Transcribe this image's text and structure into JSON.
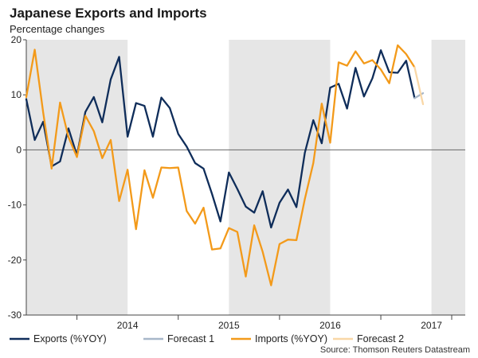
{
  "chart_data": {
    "type": "line",
    "title": "Japanese Exports and Imports",
    "subtitle": "Percentage changes",
    "source": "Source: Thomson Reuters Datastream",
    "ylim": [
      -30,
      20
    ],
    "yticks": [
      -30,
      -20,
      -10,
      0,
      10,
      20
    ],
    "xlim": [
      "2013-07",
      "2017-11"
    ],
    "x_ticks": [
      {
        "label": "2014",
        "at": "2014-07"
      },
      {
        "label": "2015",
        "at": "2015-07"
      },
      {
        "label": "2016",
        "at": "2016-07"
      },
      {
        "label": "2017",
        "at": "2017-07"
      }
    ],
    "shaded_periods": [
      {
        "start": "2013-07",
        "end": "2014-06"
      },
      {
        "start": "2015-07",
        "end": "2016-06"
      },
      {
        "start": "2017-07",
        "end": "2017-11"
      }
    ],
    "grid": false,
    "legend_position": "bottom",
    "series": [
      {
        "name": "Exports (%YOY)",
        "color": "#0f2d5a",
        "points": [
          [
            "2013-07",
            9.2
          ],
          [
            "2013-08",
            1.8
          ],
          [
            "2013-09",
            5.1
          ],
          [
            "2013-10",
            -3.0
          ],
          [
            "2013-11",
            -2.1
          ],
          [
            "2013-12",
            3.9
          ],
          [
            "2014-01",
            -1.0
          ],
          [
            "2014-02",
            6.9
          ],
          [
            "2014-03",
            9.6
          ],
          [
            "2014-04",
            5.0
          ],
          [
            "2014-05",
            12.8
          ],
          [
            "2014-06",
            16.9
          ],
          [
            "2014-07",
            2.4
          ],
          [
            "2014-08",
            8.5
          ],
          [
            "2014-09",
            8.0
          ],
          [
            "2014-10",
            2.4
          ],
          [
            "2014-11",
            9.5
          ],
          [
            "2014-12",
            7.6
          ],
          [
            "2015-01",
            2.9
          ],
          [
            "2015-02",
            0.6
          ],
          [
            "2015-03",
            -2.4
          ],
          [
            "2015-04",
            -3.4
          ],
          [
            "2015-05",
            -8.0
          ],
          [
            "2015-06",
            -13.0
          ],
          [
            "2015-07",
            -4.1
          ],
          [
            "2015-08",
            -7.1
          ],
          [
            "2015-09",
            -10.3
          ],
          [
            "2015-10",
            -11.4
          ],
          [
            "2015-11",
            -7.5
          ],
          [
            "2015-12",
            -14.1
          ],
          [
            "2016-01",
            -9.6
          ],
          [
            "2016-02",
            -7.2
          ],
          [
            "2016-03",
            -10.4
          ],
          [
            "2016-04",
            -0.5
          ],
          [
            "2016-05",
            5.4
          ],
          [
            "2016-06",
            1.2
          ],
          [
            "2016-07",
            11.3
          ],
          [
            "2016-08",
            12.0
          ],
          [
            "2016-09",
            7.5
          ],
          [
            "2016-10",
            14.9
          ],
          [
            "2016-11",
            9.7
          ],
          [
            "2016-12",
            13.0
          ],
          [
            "2017-01",
            18.1
          ],
          [
            "2017-02",
            14.1
          ],
          [
            "2017-03",
            14.0
          ],
          [
            "2017-04",
            16.2
          ],
          [
            "2017-05",
            9.4
          ]
        ]
      },
      {
        "name": "Forecast 1",
        "color": "#a7b7c9",
        "points": [
          [
            "2017-05",
            9.4
          ],
          [
            "2017-06",
            10.3
          ]
        ]
      },
      {
        "name": "Imports (%YOY)",
        "color": "#f39a1a",
        "points": [
          [
            "2013-07",
            9.6
          ],
          [
            "2013-08",
            18.2
          ],
          [
            "2013-09",
            6.8
          ],
          [
            "2013-10",
            -3.4
          ],
          [
            "2013-11",
            8.6
          ],
          [
            "2013-12",
            2.3
          ],
          [
            "2014-01",
            -1.3
          ],
          [
            "2014-02",
            6.2
          ],
          [
            "2014-03",
            3.4
          ],
          [
            "2014-04",
            -1.5
          ],
          [
            "2014-05",
            1.8
          ],
          [
            "2014-06",
            -9.3
          ],
          [
            "2014-07",
            -3.6
          ],
          [
            "2014-08",
            -14.4
          ],
          [
            "2014-09",
            -3.7
          ],
          [
            "2014-10",
            -8.7
          ],
          [
            "2014-11",
            -3.2
          ],
          [
            "2014-12",
            -3.3
          ],
          [
            "2015-01",
            -3.2
          ],
          [
            "2015-02",
            -11.1
          ],
          [
            "2015-03",
            -13.4
          ],
          [
            "2015-04",
            -10.5
          ],
          [
            "2015-05",
            -18.1
          ],
          [
            "2015-06",
            -17.9
          ],
          [
            "2015-07",
            -14.2
          ],
          [
            "2015-08",
            -14.9
          ],
          [
            "2015-09",
            -23.0
          ],
          [
            "2015-10",
            -13.7
          ],
          [
            "2015-11",
            -18.5
          ],
          [
            "2015-12",
            -24.6
          ],
          [
            "2016-01",
            -17.1
          ],
          [
            "2016-02",
            -16.3
          ],
          [
            "2016-03",
            -16.4
          ],
          [
            "2016-04",
            -8.9
          ],
          [
            "2016-05",
            -2.4
          ],
          [
            "2016-06",
            8.4
          ],
          [
            "2016-07",
            1.3
          ],
          [
            "2016-08",
            15.9
          ],
          [
            "2016-09",
            15.3
          ],
          [
            "2016-10",
            17.9
          ],
          [
            "2016-11",
            15.7
          ],
          [
            "2016-12",
            16.3
          ],
          [
            "2017-01",
            14.6
          ],
          [
            "2017-02",
            12.1
          ],
          [
            "2017-03",
            19.0
          ],
          [
            "2017-04",
            17.4
          ],
          [
            "2017-05",
            15.0
          ]
        ]
      },
      {
        "name": "Forecast 2",
        "color": "#f9d7a6",
        "points": [
          [
            "2017-05",
            15.0
          ],
          [
            "2017-06",
            8.3
          ]
        ]
      }
    ]
  },
  "legend": [
    {
      "label": "Exports (%YOY)",
      "color": "#0f2d5a"
    },
    {
      "label": "Forecast 1",
      "color": "#a7b7c9"
    },
    {
      "label": "Imports (%YOY)",
      "color": "#f39a1a"
    },
    {
      "label": "Forecast 2",
      "color": "#f9d7a6"
    }
  ]
}
